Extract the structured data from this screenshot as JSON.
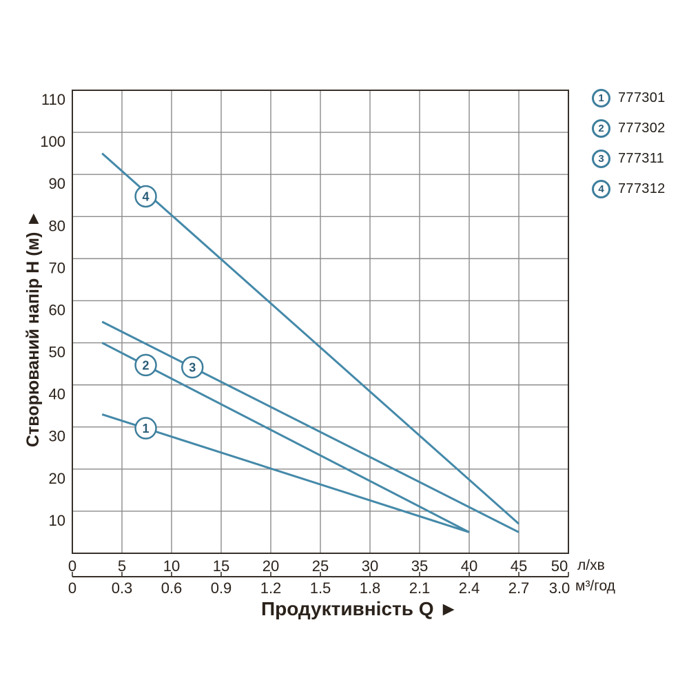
{
  "chart_data": {
    "type": "line",
    "title": "",
    "x_axis": {
      "label": "Продуктивність Q ►",
      "scales": [
        {
          "unit": "л/хв",
          "min": 0,
          "max": 50,
          "step": 5,
          "ticks": [
            "0",
            "5",
            "10",
            "15",
            "20",
            "25",
            "30",
            "35",
            "40",
            "45",
            "50"
          ]
        },
        {
          "unit": "м³/год",
          "min": 0,
          "max": 3.0,
          "step": 0.3,
          "ticks": [
            "0",
            "0.3",
            "0.6",
            "0.9",
            "1.2",
            "1.5",
            "1.8",
            "2.1",
            "2.4",
            "2.7",
            "3.0"
          ]
        }
      ]
    },
    "y_axis": {
      "label": "Створюваний напір H (м) ►",
      "min": 0,
      "max": 110,
      "step": 10,
      "ticks": [
        "10",
        "20",
        "30",
        "40",
        "50",
        "60",
        "70",
        "80",
        "90",
        "100",
        "110"
      ]
    },
    "grid": true,
    "legend_position": "top-right",
    "series": [
      {
        "num": "1",
        "code": "777301",
        "points": [
          [
            3,
            33
          ],
          [
            40,
            5
          ]
        ],
        "marker": [
          7.4,
          29.7
        ]
      },
      {
        "num": "2",
        "code": "777302",
        "points": [
          [
            3,
            50
          ],
          [
            40,
            5
          ]
        ],
        "marker": [
          7.4,
          44.7
        ]
      },
      {
        "num": "3",
        "code": "777311",
        "points": [
          [
            3,
            55
          ],
          [
            45,
            5
          ]
        ],
        "marker": [
          12.1,
          44.2
        ]
      },
      {
        "num": "4",
        "code": "777312",
        "points": [
          [
            3,
            95
          ],
          [
            45,
            7
          ]
        ],
        "marker": [
          7.4,
          84.8
        ]
      }
    ],
    "colors": {
      "line": "#4489a9",
      "marker_ring": "#3d7e9c",
      "marker_number": "#2b5d78",
      "grid": "#8a8a8a",
      "axis": "#37302a",
      "text": "#2b221b"
    }
  }
}
